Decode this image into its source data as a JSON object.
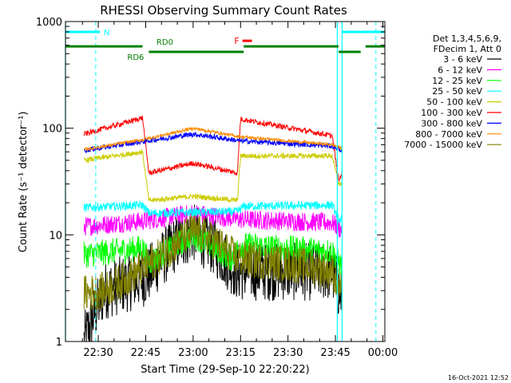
{
  "chart_data": {
    "type": "line",
    "title": "RHESSI Observing Summary Count Rates",
    "xlabel": "Start Time (29-Sep-10 22:20:22)",
    "ylabel_html": "Count Rate (s⁻¹ detector⁻¹)",
    "yscale": "log",
    "ylim": [
      1,
      1000
    ],
    "xlim_minutes": [
      -0.37,
      100.63
    ],
    "xticks": [
      {
        "m": 10,
        "label": "22:30"
      },
      {
        "m": 25,
        "label": "22:45"
      },
      {
        "m": 40,
        "label": "23:00"
      },
      {
        "m": 55,
        "label": "23:15"
      },
      {
        "m": 70,
        "label": "23:30"
      },
      {
        "m": 85,
        "label": "23:45"
      },
      {
        "m": 100,
        "label": "00:00"
      }
    ],
    "yticks": [
      {
        "v": 1,
        "label": "1"
      },
      {
        "v": 10,
        "label": "10"
      },
      {
        "v": 100,
        "label": "100"
      },
      {
        "v": 1000,
        "label": "1000"
      }
    ],
    "legend_header": [
      "Det 1,3,4,5,6,9,",
      "FDecim 1, Att 0"
    ],
    "series": [
      {
        "name": "3 - 6 keV",
        "color": "#000000",
        "base": 3.0,
        "mid": 9.0,
        "noise": 0.55,
        "points": [
          [
            5.5,
            1.0
          ],
          [
            8,
            1.6
          ],
          [
            12,
            3.0
          ],
          [
            25,
            4.0
          ],
          [
            34,
            8.0
          ],
          [
            40,
            10.5
          ],
          [
            46,
            8.0
          ],
          [
            54,
            4.5
          ],
          [
            66,
            4.5
          ],
          [
            78,
            4.5
          ],
          [
            84,
            4.5
          ],
          [
            87,
            2.5
          ]
        ]
      },
      {
        "name": "6 - 12 keV",
        "color": "#ff00ff",
        "base": 12.5,
        "noise": 0.18,
        "points": [
          [
            5.5,
            12.0
          ],
          [
            25,
            13.5
          ],
          [
            40,
            16.0
          ],
          [
            54,
            14.0
          ],
          [
            84,
            13.0
          ],
          [
            87,
            11.0
          ]
        ]
      },
      {
        "name": "12 - 25 keV",
        "color": "#00ff00",
        "base": 7.0,
        "noise": 0.25,
        "points": [
          [
            5.5,
            6.5
          ],
          [
            24,
            7.5
          ],
          [
            26,
            5.5
          ],
          [
            40,
            10.0
          ],
          [
            52,
            6.0
          ],
          [
            55,
            8.0
          ],
          [
            84,
            7.0
          ],
          [
            87,
            5.0
          ]
        ]
      },
      {
        "name": "25 - 50 keV",
        "color": "#00ffff",
        "base": 18.0,
        "noise": 0.08,
        "points": [
          [
            5.5,
            18.0
          ],
          [
            24,
            19.0
          ],
          [
            26,
            16.0
          ],
          [
            54,
            16.5
          ],
          [
            56,
            18.5
          ],
          [
            84,
            19.0
          ],
          [
            86,
            14.0
          ]
        ]
      },
      {
        "name": "50 - 100 keV",
        "color": "#cccc00",
        "base": 52.0,
        "noise": 0.05,
        "points": [
          [
            5.5,
            50.0
          ],
          [
            24,
            60.0
          ],
          [
            26,
            21.0
          ],
          [
            40,
            23.0
          ],
          [
            54,
            21.0
          ],
          [
            55,
            55.0
          ],
          [
            84,
            55.0
          ],
          [
            86,
            30.0
          ]
        ]
      },
      {
        "name": "100 - 300 keV",
        "color": "#ff0000",
        "base": 90.0,
        "noise": 0.05,
        "points": [
          [
            5.5,
            88.0
          ],
          [
            24,
            125.0
          ],
          [
            26,
            38.0
          ],
          [
            40,
            47.0
          ],
          [
            54,
            38.0
          ],
          [
            55,
            122.0
          ],
          [
            84,
            85.0
          ],
          [
            86,
            32.0
          ],
          [
            87,
            38.0
          ]
        ]
      },
      {
        "name": "300 - 800 keV",
        "color": "#0000ff",
        "base": 63.0,
        "noise": 0.05,
        "points": [
          [
            5.5,
            62.0
          ],
          [
            24,
            75.0
          ],
          [
            40,
            88.0
          ],
          [
            55,
            76.0
          ],
          [
            84,
            68.0
          ],
          [
            87,
            62.0
          ]
        ]
      },
      {
        "name": "800 - 7000 keV",
        "color": "#ff8c00",
        "base": 65.0,
        "noise": 0.03,
        "points": [
          [
            5.5,
            63.0
          ],
          [
            24,
            78.0
          ],
          [
            40,
            100.0
          ],
          [
            55,
            83.0
          ],
          [
            84,
            70.0
          ],
          [
            87,
            65.0
          ]
        ]
      },
      {
        "name": "7000 - 15000 keV",
        "color": "#808000",
        "base": 3.0,
        "noise": 0.35,
        "points": [
          [
            5.5,
            2.8
          ],
          [
            12,
            3.0
          ],
          [
            25,
            5.0
          ],
          [
            34,
            8.0
          ],
          [
            40,
            11.0
          ],
          [
            46,
            9.0
          ],
          [
            54,
            6.0
          ],
          [
            66,
            5.5
          ],
          [
            78,
            5.0
          ],
          [
            84,
            4.5
          ],
          [
            87,
            3.0
          ]
        ]
      }
    ],
    "annotations": {
      "N": {
        "label": "N",
        "color": "#00ffff",
        "segments": [
          [
            -0.37,
            10.5
          ],
          [
            87,
            100.63
          ]
        ],
        "dashed_x": [
          9.2,
          97.8
        ],
        "y": 800
      },
      "F": {
        "label": "F",
        "color": "#ff0000",
        "segment": [
          55.6,
          58.6
        ],
        "y": 660
      },
      "RD0": {
        "label": "RD0",
        "color": "#008000",
        "segments": [
          [
            26,
            56
          ],
          [
            86,
            93
          ]
        ],
        "y": 520
      },
      "RD6": {
        "label": "RD6",
        "color": "#008000",
        "segments": [
          [
            -0.37,
            24
          ],
          [
            56,
            86
          ],
          [
            94.5,
            100.63
          ]
        ],
        "y": 585
      },
      "cyan_vlines_x": [
        -0.37,
        85.6,
        87.1
      ]
    },
    "footer_date": "16-Oct-2021 12:52"
  }
}
